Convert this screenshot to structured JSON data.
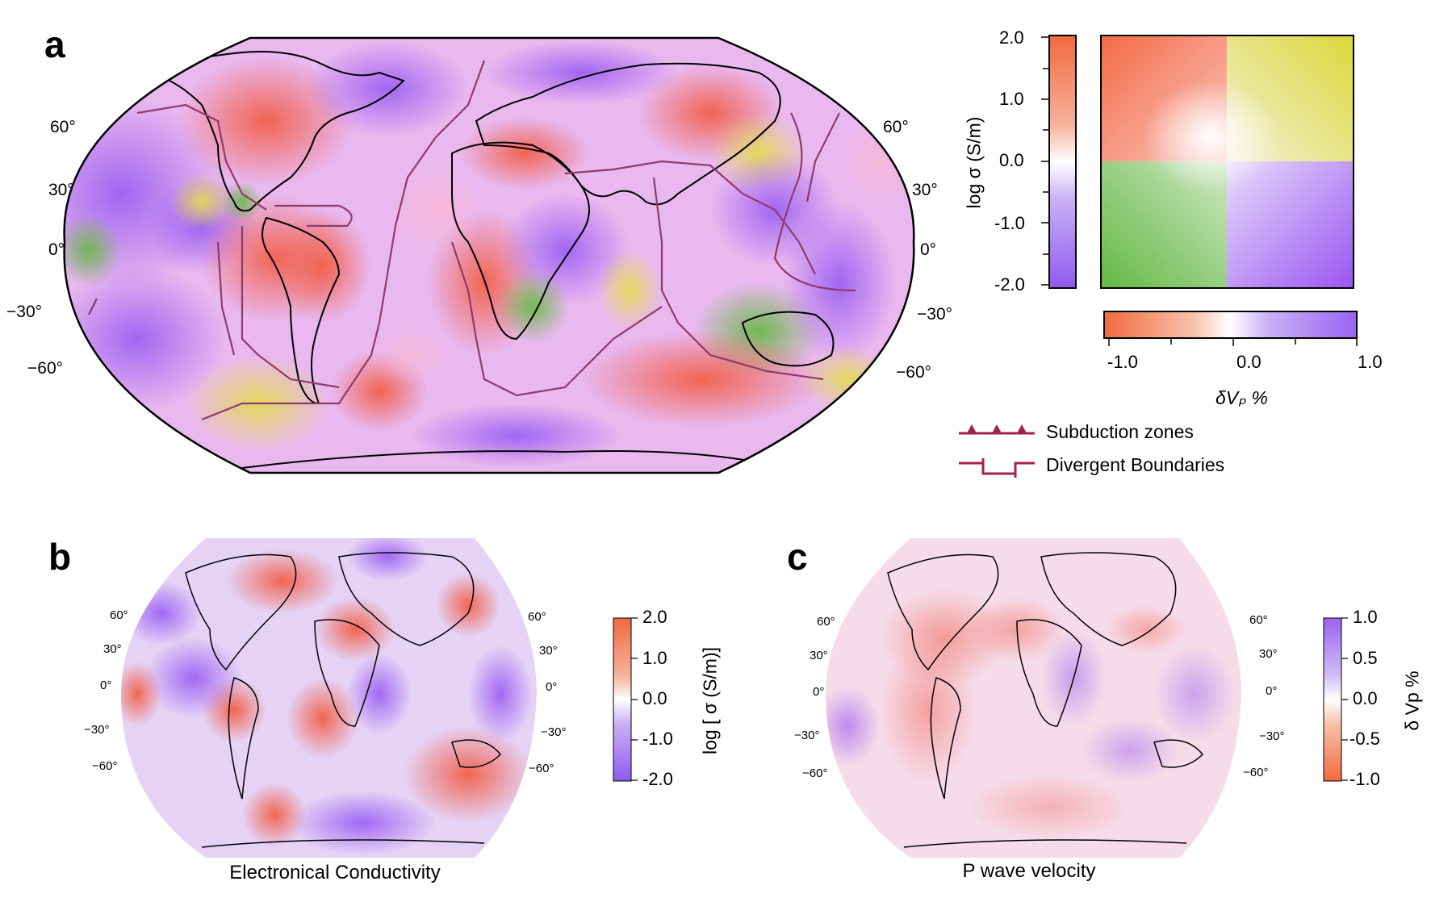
{
  "panels": {
    "a": {
      "letter": "a",
      "lat_labels_left": [
        "60°",
        "30°",
        "0°",
        "−30°",
        "−60°"
      ],
      "lat_labels_right": [
        "60°",
        "30°",
        "0°",
        "−30°",
        "−60°"
      ],
      "legend": {
        "subduction": "Subduction zones",
        "divergent": "Divergent Boundaries"
      },
      "bivariate_colorbar": {
        "y_label": "log σ (S/m)",
        "y_ticks": [
          "2.0",
          "1.0",
          "0.0",
          "-1.0",
          "-2.0"
        ],
        "x_label": "δVₚ %",
        "x_ticks": [
          "-1.0",
          "0.0",
          "1.0"
        ]
      }
    },
    "b": {
      "letter": "b",
      "lat_labels_left": [
        "60°",
        "30°",
        "0°",
        "−30°",
        "−60°"
      ],
      "lat_labels_right": [
        "60°",
        "30°",
        "0°",
        "−30°",
        "−60°"
      ],
      "caption": "Electronical Conductivity",
      "colorbar": {
        "label": "log [ σ (S/m)]",
        "ticks": [
          "2.0",
          "1.0",
          "0.0",
          "-1.0",
          "-2.0"
        ]
      }
    },
    "c": {
      "letter": "c",
      "lat_labels_left": [
        "60°",
        "30°",
        "0°",
        "−30°",
        "−60°"
      ],
      "lat_labels_right": [
        "60°",
        "30°",
        "0°",
        "−30°",
        "−60°"
      ],
      "caption": "P wave velocity",
      "colorbar": {
        "label": "δ Vp %",
        "ticks": [
          "1.0",
          "0.5",
          "0.0",
          "-0.5",
          "-1.0"
        ]
      }
    }
  },
  "colors": {
    "high_conductivity": "#f26d4a",
    "low_conductivity": "#9a63f0",
    "green": "#6cb84a",
    "yellow": "#dcd65a",
    "plate_boundary": "#8e3b6b",
    "legend_line": "#a0224e"
  }
}
